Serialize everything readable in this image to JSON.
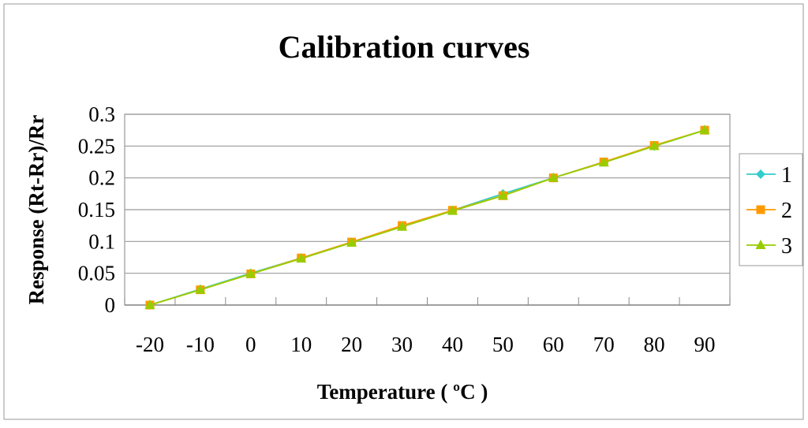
{
  "chart_data": {
    "type": "line",
    "title": "Calibration curves",
    "xlabel": "Temperature ( ºC )",
    "ylabel": "Response (Rt-Rr)/Rr",
    "categories": [
      "-20",
      "-10",
      "0",
      "10",
      "20",
      "30",
      "40",
      "50",
      "60",
      "70",
      "80",
      "90"
    ],
    "ylim": [
      0,
      0.3
    ],
    "yticks": [
      "0",
      "0.05",
      "0.1",
      "0.15",
      "0.2",
      "0.25",
      "0.3"
    ],
    "grid": true,
    "legend_position": "right",
    "series": [
      {
        "name": "1",
        "color": "#33CCCC",
        "marker": "diamond",
        "values": [
          0,
          0.025,
          0.05,
          0.074,
          0.099,
          0.124,
          0.149,
          0.175,
          0.2,
          0.225,
          0.25,
          0.275
        ]
      },
      {
        "name": "2",
        "color": "#FF9900",
        "marker": "square",
        "values": [
          0,
          0.024,
          0.049,
          0.074,
          0.099,
          0.125,
          0.149,
          0.172,
          0.2,
          0.225,
          0.251,
          0.275
        ]
      },
      {
        "name": "3",
        "color": "#99CC00",
        "marker": "triangle",
        "values": [
          0,
          0.024,
          0.049,
          0.073,
          0.098,
          0.123,
          0.148,
          0.172,
          0.2,
          0.224,
          0.25,
          0.275
        ]
      }
    ]
  }
}
